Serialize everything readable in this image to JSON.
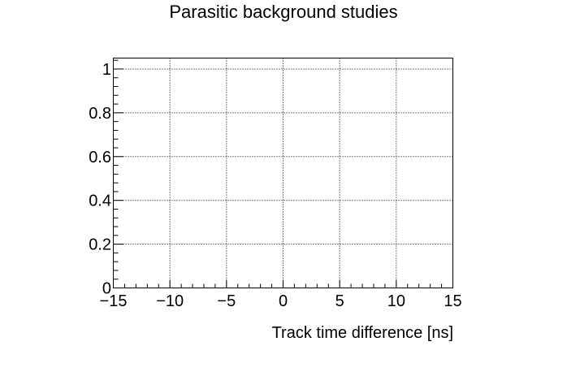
{
  "chart_data": {
    "type": "scatter",
    "title": "Parasitic background studies",
    "xlabel": "Track time difference [ns]",
    "ylabel": "",
    "xlim": [
      -15,
      15
    ],
    "ylim": [
      0,
      1.05
    ],
    "xticks": [
      -15,
      -10,
      -5,
      0,
      5,
      10,
      15
    ],
    "xtick_labels": [
      "−15",
      "−10",
      "−5",
      "0",
      "5",
      "10",
      "15"
    ],
    "yticks": [
      0,
      0.2,
      0.4,
      0.6,
      0.8,
      1
    ],
    "ytick_labels": [
      "0",
      "0.2",
      "0.4",
      "0.6",
      "0.8",
      "1"
    ],
    "grid": true,
    "series": []
  }
}
